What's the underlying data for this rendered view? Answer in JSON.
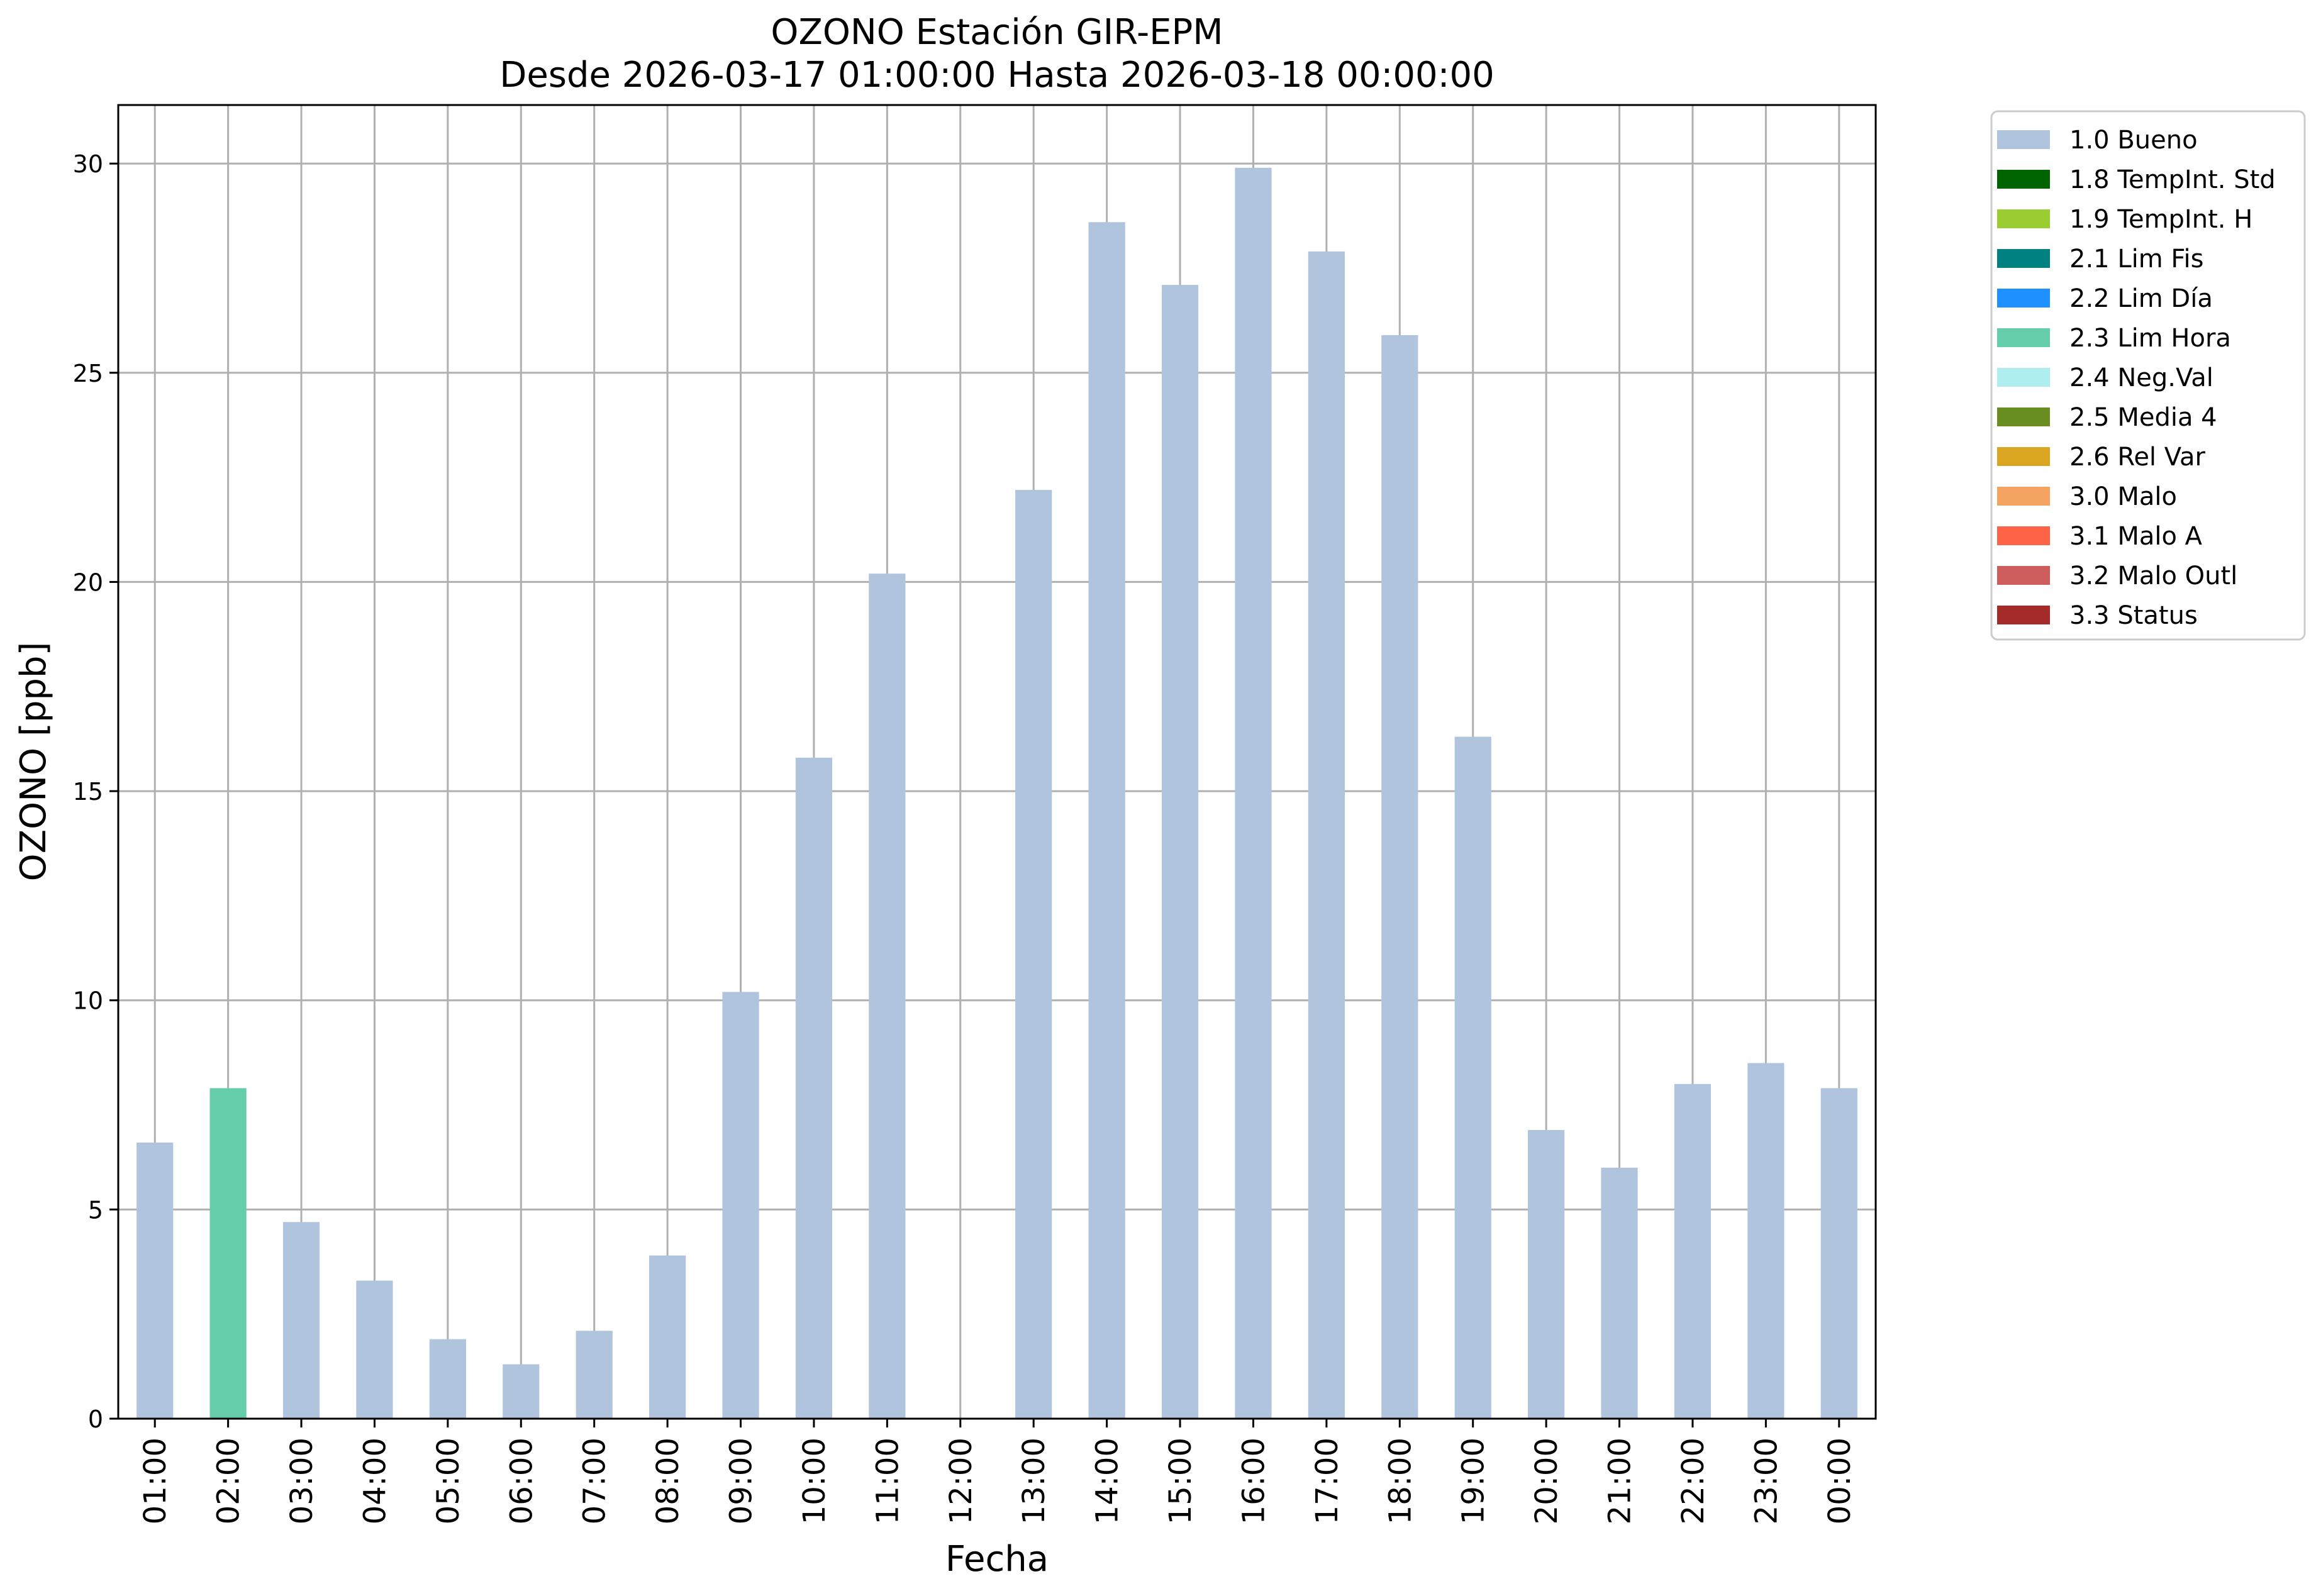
{
  "chart_data": {
    "type": "bar",
    "title": "OZONO Estación GIR-EPM",
    "subtitle": "Desde 2026-03-17 01:00:00 Hasta 2026-03-18 00:00:00",
    "xlabel": "Fecha",
    "ylabel": "OZONO [ppb]",
    "ylim": [
      0,
      31.4
    ],
    "yticks": [
      0,
      5,
      10,
      15,
      20,
      25,
      30
    ],
    "grid": true,
    "legend_position": "outside-top-right",
    "categories": [
      "01:00",
      "02:00",
      "03:00",
      "04:00",
      "05:00",
      "06:00",
      "07:00",
      "08:00",
      "09:00",
      "10:00",
      "11:00",
      "12:00",
      "13:00",
      "14:00",
      "15:00",
      "16:00",
      "17:00",
      "18:00",
      "19:00",
      "20:00",
      "21:00",
      "22:00",
      "23:00",
      "00:00"
    ],
    "values": [
      6.6,
      7.9,
      4.7,
      3.3,
      1.9,
      1.3,
      2.1,
      3.9,
      10.2,
      15.8,
      20.2,
      null,
      22.2,
      28.6,
      27.1,
      29.9,
      27.9,
      25.9,
      16.3,
      6.9,
      6.0,
      8.0,
      8.5,
      7.9
    ],
    "flags": [
      "1.0 Bueno",
      "2.3 Lim Hora",
      "1.0 Bueno",
      "1.0 Bueno",
      "1.0 Bueno",
      "1.0 Bueno",
      "1.0 Bueno",
      "1.0 Bueno",
      "1.0 Bueno",
      "1.0 Bueno",
      "1.0 Bueno",
      null,
      "1.0 Bueno",
      "1.0 Bueno",
      "1.0 Bueno",
      "1.0 Bueno",
      "1.0 Bueno",
      "1.0 Bueno",
      "1.0 Bueno",
      "1.0 Bueno",
      "1.0 Bueno",
      "1.0 Bueno",
      "1.0 Bueno",
      "1.0 Bueno"
    ],
    "legend": [
      {
        "label": "1.0 Bueno",
        "color": "#b0c4de"
      },
      {
        "label": "1.8 TempInt. Std",
        "color": "#006400"
      },
      {
        "label": "1.9 TempInt. H",
        "color": "#9acd32"
      },
      {
        "label": "2.1 Lim Fis",
        "color": "#008080"
      },
      {
        "label": "2.2 Lim Día",
        "color": "#1e90ff"
      },
      {
        "label": "2.3 Lim Hora",
        "color": "#66cdaa"
      },
      {
        "label": "2.4 Neg.Val",
        "color": "#afeeee"
      },
      {
        "label": "2.5 Media 4",
        "color": "#6b8e23"
      },
      {
        "label": "2.6 Rel Var",
        "color": "#daa520"
      },
      {
        "label": "3.0 Malo",
        "color": "#f4a460"
      },
      {
        "label": "3.1 Malo A",
        "color": "#ff6347"
      },
      {
        "label": "3.2 Malo Outl",
        "color": "#cd5c5c"
      },
      {
        "label": "3.3 Status",
        "color": "#a52a2a"
      }
    ]
  }
}
